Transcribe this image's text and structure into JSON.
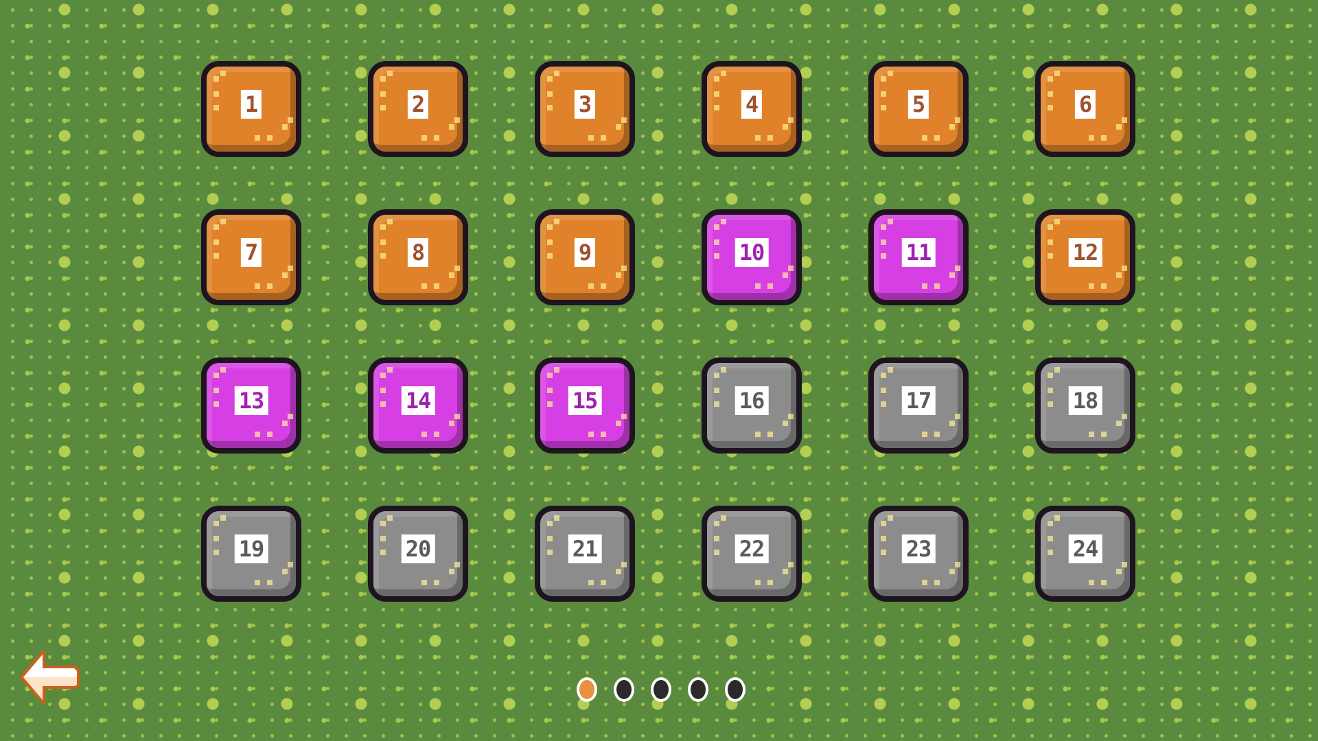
{
  "levels": [
    {
      "label": "1",
      "state": "unlocked"
    },
    {
      "label": "2",
      "state": "unlocked"
    },
    {
      "label": "3",
      "state": "unlocked"
    },
    {
      "label": "4",
      "state": "unlocked"
    },
    {
      "label": "5",
      "state": "unlocked"
    },
    {
      "label": "6",
      "state": "unlocked"
    },
    {
      "label": "7",
      "state": "unlocked"
    },
    {
      "label": "8",
      "state": "unlocked"
    },
    {
      "label": "9",
      "state": "unlocked"
    },
    {
      "label": "10",
      "state": "special"
    },
    {
      "label": "11",
      "state": "special"
    },
    {
      "label": "12",
      "state": "unlocked"
    },
    {
      "label": "13",
      "state": "special"
    },
    {
      "label": "14",
      "state": "special"
    },
    {
      "label": "15",
      "state": "special"
    },
    {
      "label": "16",
      "state": "locked"
    },
    {
      "label": "17",
      "state": "locked"
    },
    {
      "label": "18",
      "state": "locked"
    },
    {
      "label": "19",
      "state": "locked"
    },
    {
      "label": "20",
      "state": "locked"
    },
    {
      "label": "21",
      "state": "locked"
    },
    {
      "label": "22",
      "state": "locked"
    },
    {
      "label": "23",
      "state": "locked"
    },
    {
      "label": "24",
      "state": "locked"
    }
  ],
  "colors": {
    "unlocked": "#e0822a",
    "special": "#d63fe3",
    "locked": "#8c8c8c",
    "unlocked_text": "#a0522d",
    "special_text": "#a020b0",
    "locked_text": "#5a5a5a",
    "page_active": "#e8913e",
    "page_inactive": "#2a2a2a"
  },
  "pagination": {
    "current": 1,
    "total": 5
  },
  "back_icon": "arrow-left-icon"
}
